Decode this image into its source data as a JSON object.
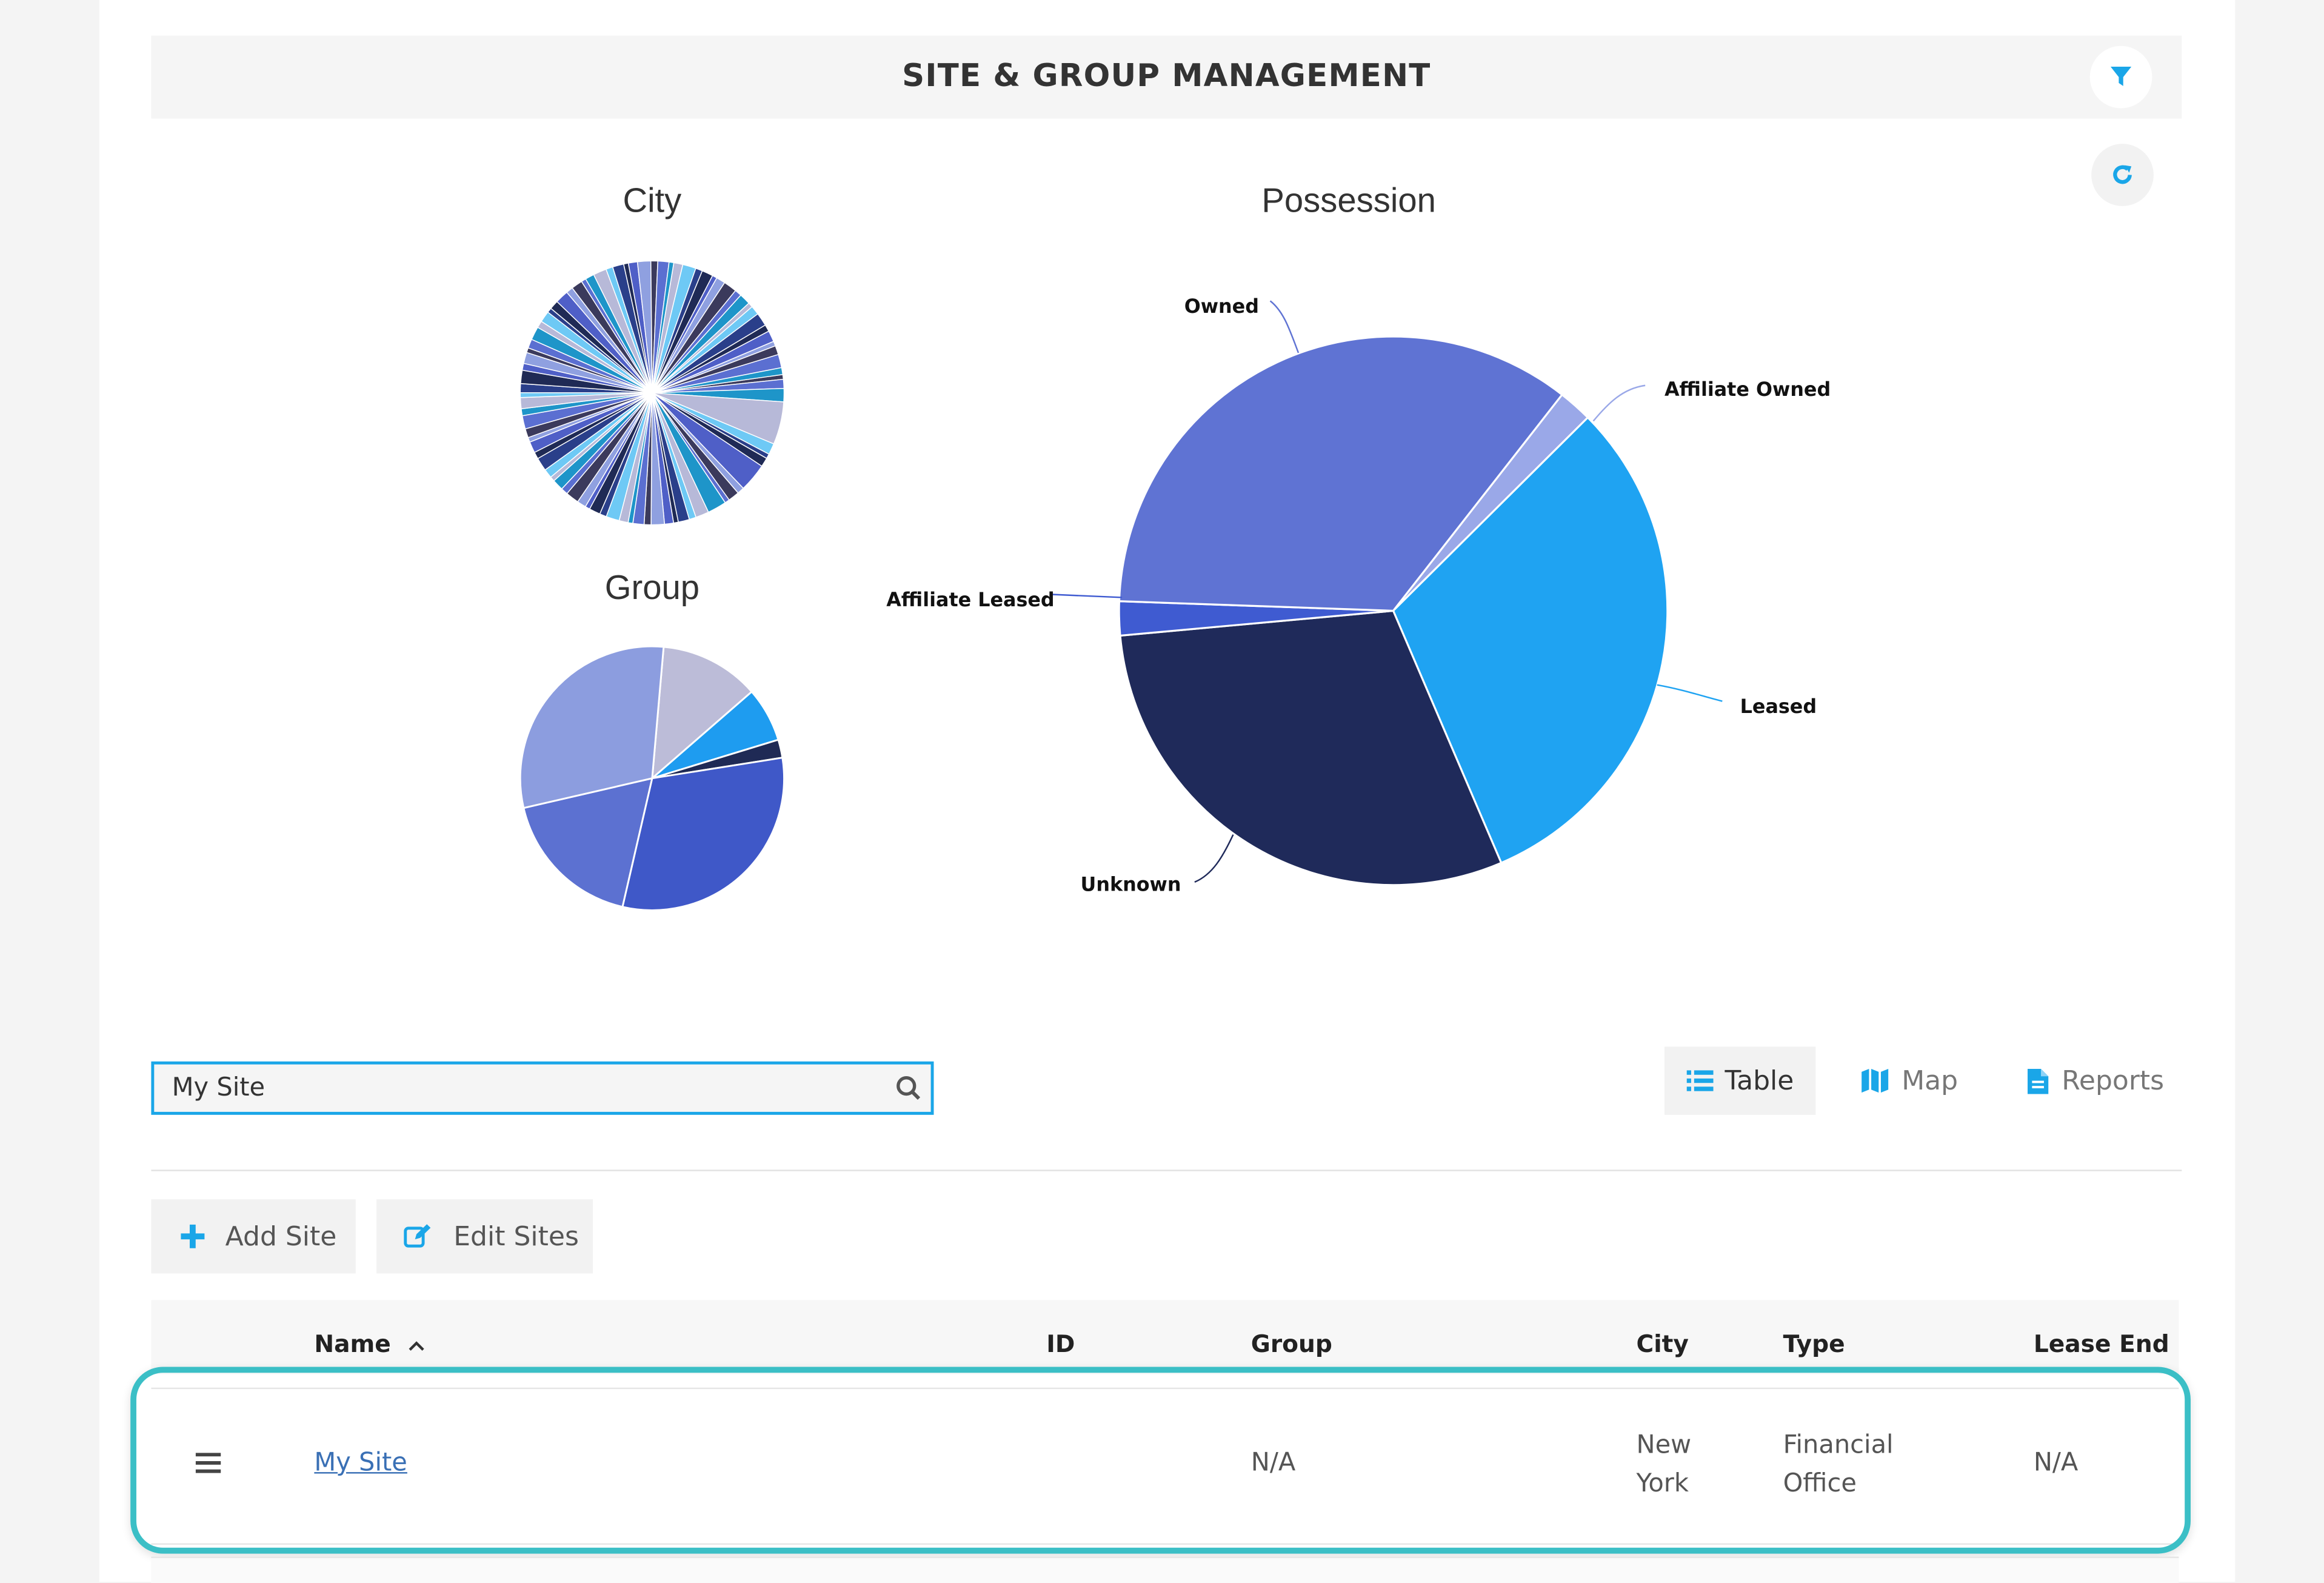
{
  "header": {
    "title": "SITE & GROUP MANAGEMENT",
    "filter_icon": "filter-icon",
    "refresh_icon": "refresh-icon"
  },
  "colors": {
    "accent": "#1aa6e8",
    "highlight": "#3bbfc6",
    "link": "#3a70b5"
  },
  "search": {
    "value": "My Site",
    "icon": "search-icon"
  },
  "views": [
    {
      "label": "Table",
      "icon": "list-icon",
      "active": true
    },
    {
      "label": "Map",
      "icon": "map-icon",
      "active": false
    },
    {
      "label": "Reports",
      "icon": "document-icon",
      "active": false
    }
  ],
  "actions": {
    "add_site": "Add Site",
    "edit_sites": "Edit Sites"
  },
  "table": {
    "columns": [
      "Name",
      "ID",
      "Group",
      "City",
      "Type",
      "Lease End"
    ],
    "sort_column": "Name",
    "rows": [
      {
        "name": "My Site",
        "id": "",
        "group": "N/A",
        "city_line1": "New",
        "city_line2": "York",
        "type_line1": "Financial",
        "type_line2": "Office",
        "lease_end": "N/A"
      }
    ]
  },
  "chart_data": [
    {
      "type": "pie",
      "title": "City",
      "note": "many small unlabeled slices",
      "slice_count": 84,
      "colors": [
        "#3b3a5c",
        "#1e95c9",
        "#6ec9f5",
        "#1f2a55",
        "#8fa0e0",
        "#5b6fd1",
        "#b7b9d8",
        "#2a3f8a",
        "#4f5fc7"
      ]
    },
    {
      "type": "pie",
      "title": "Group",
      "slices": [
        {
          "value": 11,
          "color": "#bcbcd8"
        },
        {
          "value": 6,
          "color": "#1e9cf0"
        },
        {
          "value": 2,
          "color": "#1f2a55"
        },
        {
          "value": 28,
          "color": "#3f58c8"
        },
        {
          "value": 16,
          "color": "#5c71d1"
        },
        {
          "value": 27,
          "color": "#8c9ddf"
        }
      ]
    },
    {
      "type": "pie",
      "title": "Possession",
      "slices": [
        {
          "label": "Affiliate Owned",
          "value": 2,
          "color": "#9aa8e8"
        },
        {
          "label": "Leased",
          "value": 31,
          "color": "#1fa3f2"
        },
        {
          "label": "Unknown",
          "value": 30,
          "color": "#1f2a5a"
        },
        {
          "label": "Affiliate Leased",
          "value": 2,
          "color": "#3f5bd1"
        },
        {
          "label": "Owned",
          "value": 35,
          "color": "#5f73d3"
        }
      ]
    }
  ]
}
